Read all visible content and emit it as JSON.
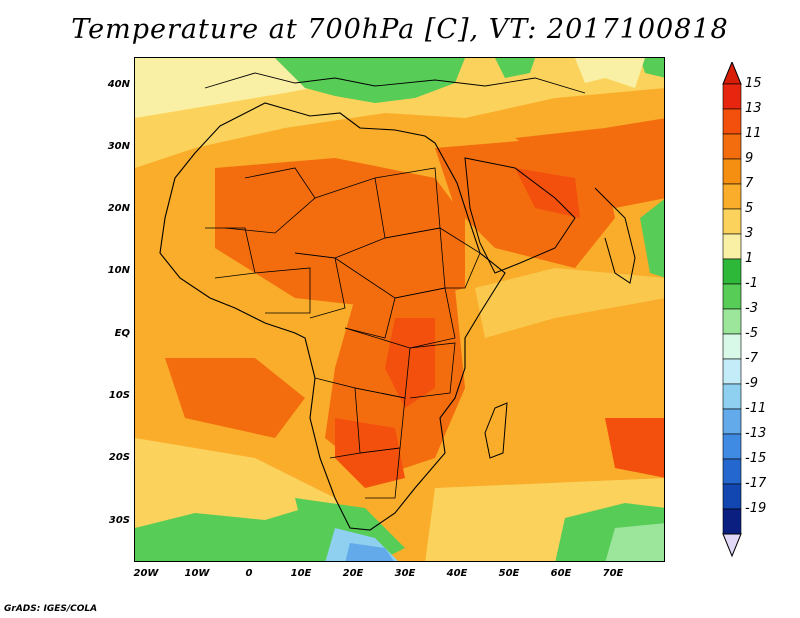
{
  "title": "Temperature at 700hPa [C], VT: 2017100818",
  "credit": "GrADS: IGES/COLA",
  "lat_labels": [
    "40N",
    "30N",
    "20N",
    "10N",
    "EQ",
    "10S",
    "20S",
    "30S"
  ],
  "lon_labels": [
    "20W",
    "10W",
    "0",
    "10E",
    "20E",
    "30E",
    "40E",
    "50E",
    "60E",
    "70E"
  ],
  "colorbar": {
    "labels": [
      "15",
      "13",
      "11",
      "9",
      "7",
      "5",
      "3",
      "1",
      "-1",
      "-3",
      "-5",
      "-7",
      "-9",
      "-11",
      "-13",
      "-15",
      "-17",
      "-19"
    ],
    "colors": [
      "#e8250e",
      "#f2500c",
      "#f36d0f",
      "#f58f12",
      "#f9ad2a",
      "#fbd35c",
      "#f9f0a5",
      "#2eb83a",
      "#57cc57",
      "#9ce69c",
      "#d8f8e8",
      "#c4ecf8",
      "#8fd0f0",
      "#62aaea",
      "#3f8ae2",
      "#2468cf",
      "#1246b0",
      "#0a1f80"
    ],
    "top_arrow_color": "#d81e06",
    "bottom_arrow_color": "#e2d8f8"
  }
}
